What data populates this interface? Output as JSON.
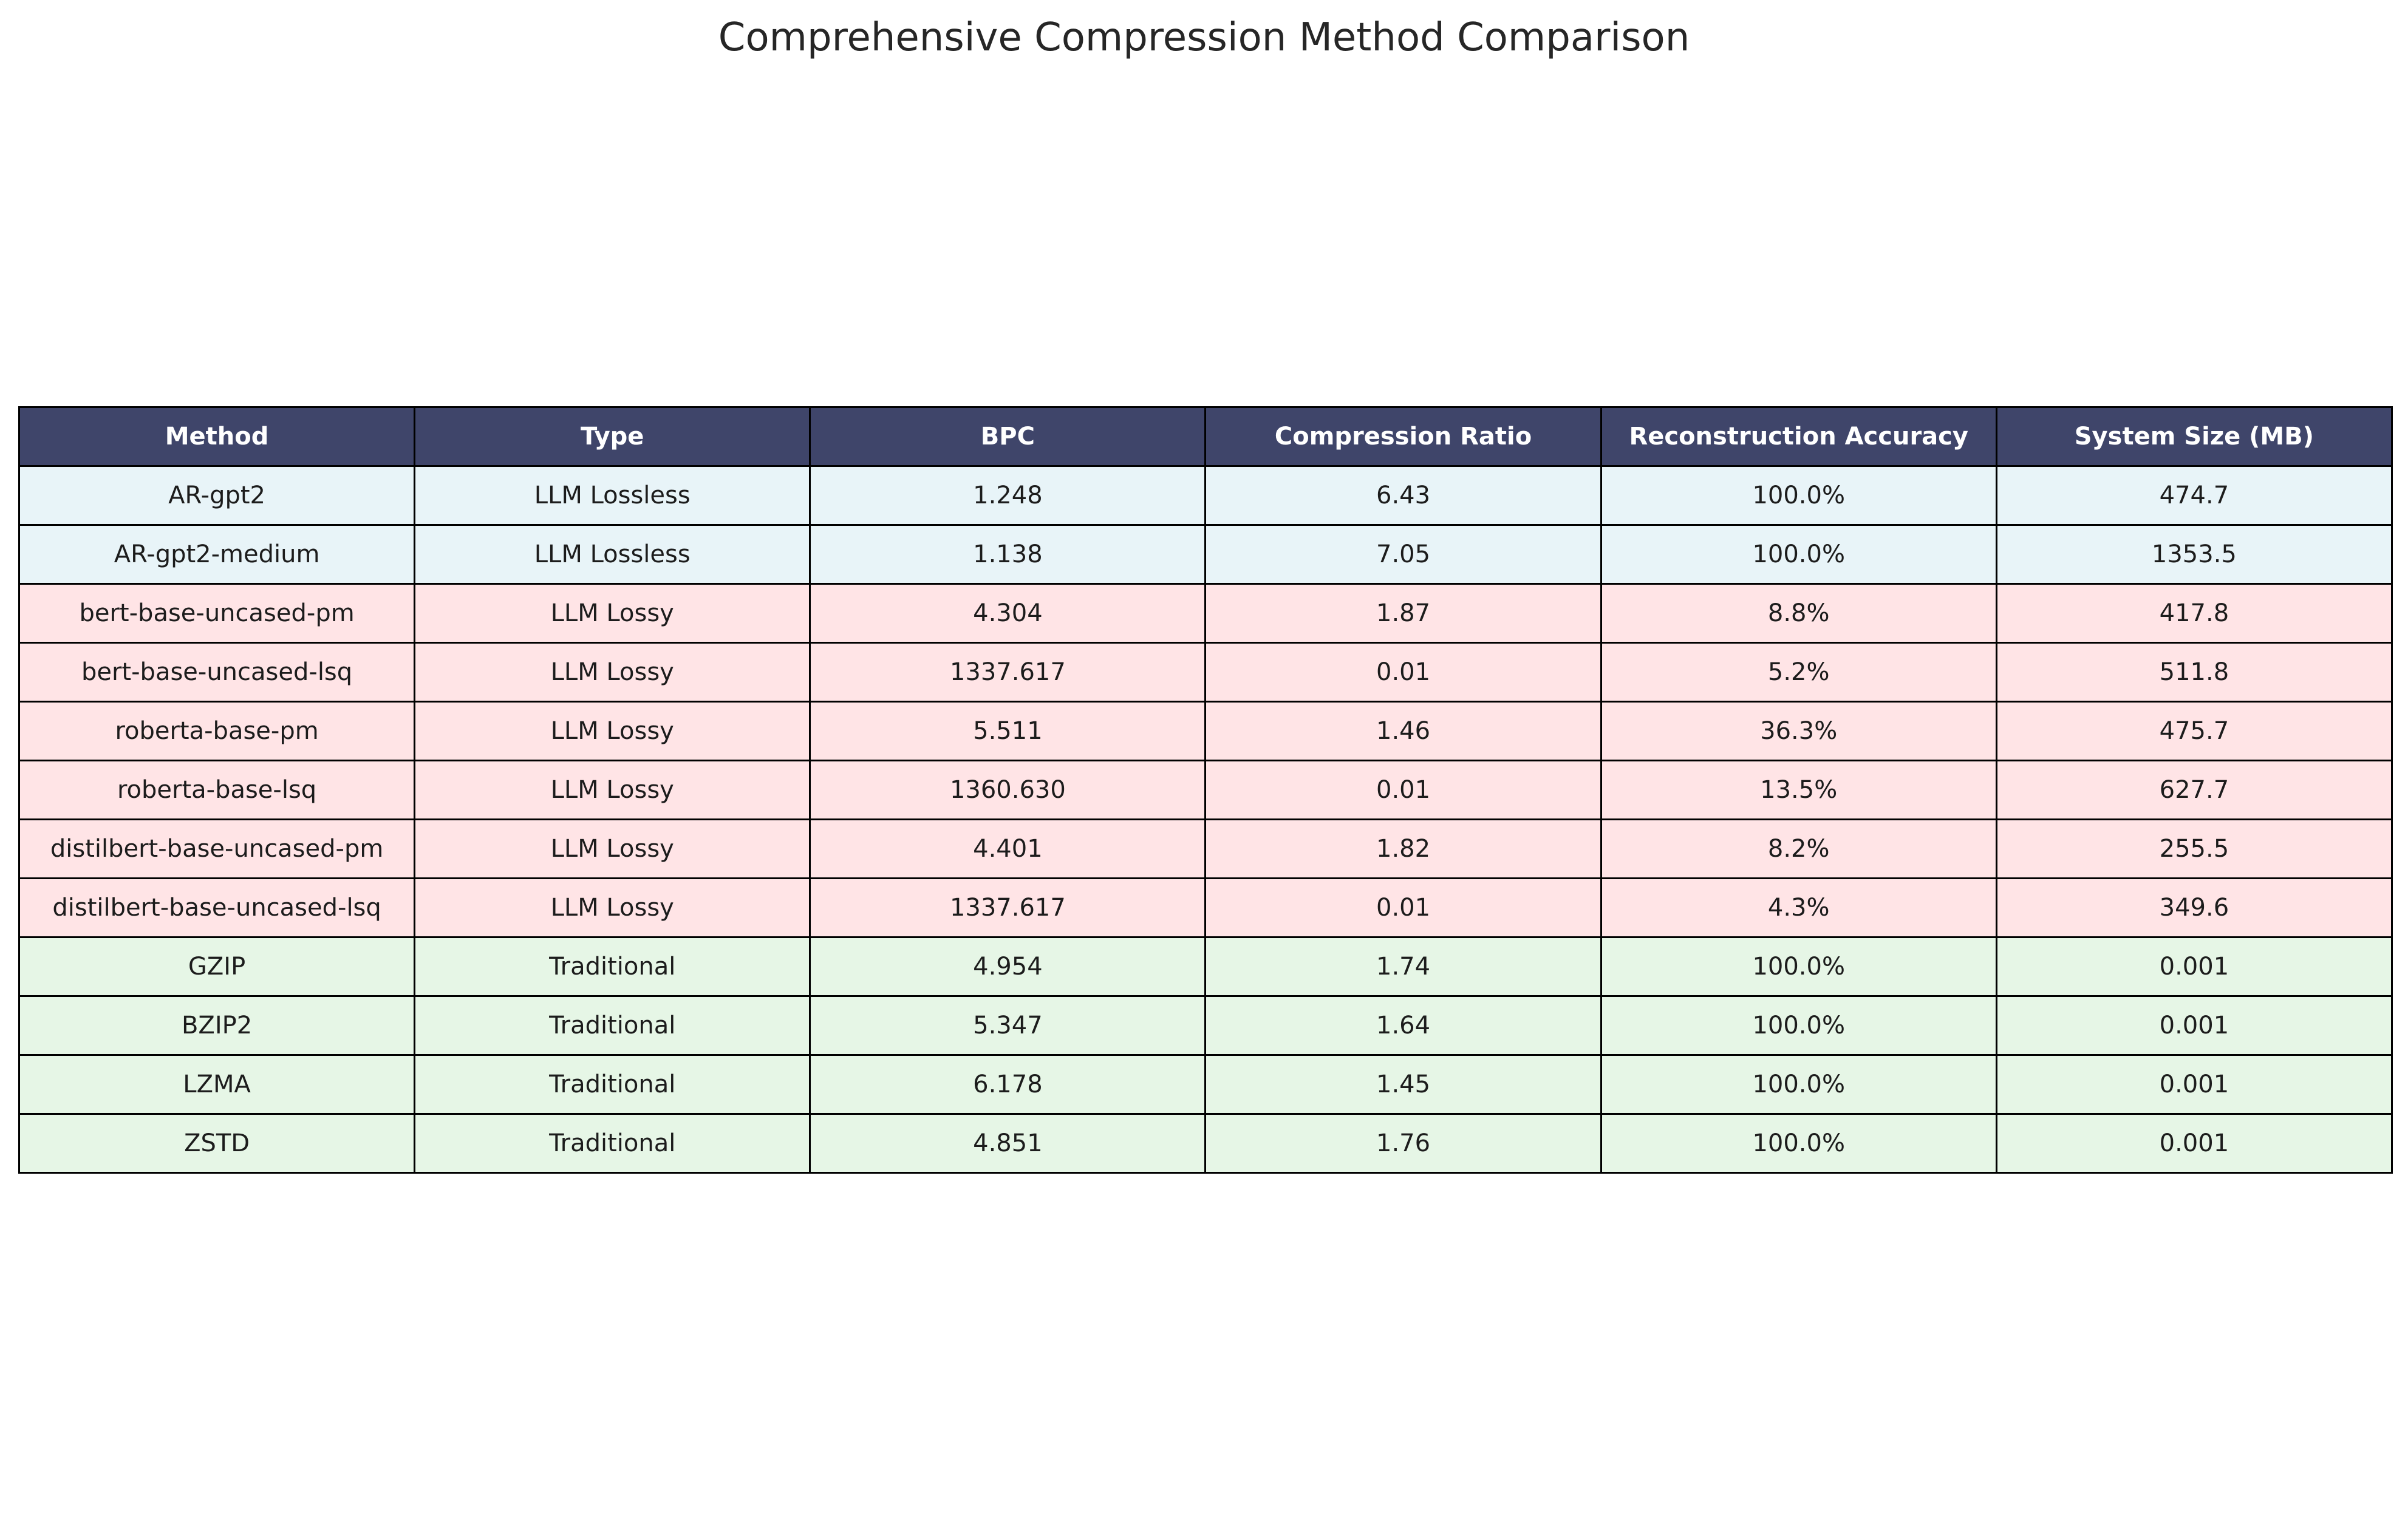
{
  "chart_data": {
    "type": "table",
    "title": "Comprehensive Compression Method Comparison",
    "columns": [
      "Method",
      "Type",
      "BPC",
      "Compression Ratio",
      "Reconstruction Accuracy",
      "System Size (MB)"
    ],
    "rows": [
      {
        "group": "lossless",
        "cells": [
          "AR-gpt2",
          "LLM Lossless",
          "1.248",
          "6.43",
          "100.0%",
          "474.7"
        ]
      },
      {
        "group": "lossless",
        "cells": [
          "AR-gpt2-medium",
          "LLM Lossless",
          "1.138",
          "7.05",
          "100.0%",
          "1353.5"
        ]
      },
      {
        "group": "lossy",
        "cells": [
          "bert-base-uncased-pm",
          "LLM Lossy",
          "4.304",
          "1.87",
          "8.8%",
          "417.8"
        ]
      },
      {
        "group": "lossy",
        "cells": [
          "bert-base-uncased-lsq",
          "LLM Lossy",
          "1337.617",
          "0.01",
          "5.2%",
          "511.8"
        ]
      },
      {
        "group": "lossy",
        "cells": [
          "roberta-base-pm",
          "LLM Lossy",
          "5.511",
          "1.46",
          "36.3%",
          "475.7"
        ]
      },
      {
        "group": "lossy",
        "cells": [
          "roberta-base-lsq",
          "LLM Lossy",
          "1360.630",
          "0.01",
          "13.5%",
          "627.7"
        ]
      },
      {
        "group": "lossy",
        "cells": [
          "distilbert-base-uncased-pm",
          "LLM Lossy",
          "4.401",
          "1.82",
          "8.2%",
          "255.5"
        ]
      },
      {
        "group": "lossy",
        "cells": [
          "distilbert-base-uncased-lsq",
          "LLM Lossy",
          "1337.617",
          "0.01",
          "4.3%",
          "349.6"
        ]
      },
      {
        "group": "traditional",
        "cells": [
          "GZIP",
          "Traditional",
          "4.954",
          "1.74",
          "100.0%",
          "0.001"
        ]
      },
      {
        "group": "traditional",
        "cells": [
          "BZIP2",
          "Traditional",
          "5.347",
          "1.64",
          "100.0%",
          "0.001"
        ]
      },
      {
        "group": "traditional",
        "cells": [
          "LZMA",
          "Traditional",
          "6.178",
          "1.45",
          "100.0%",
          "0.001"
        ]
      },
      {
        "group": "traditional",
        "cells": [
          "ZSTD",
          "Traditional",
          "4.851",
          "1.76",
          "100.0%",
          "0.001"
        ]
      }
    ],
    "colors": {
      "header": "#3f456a",
      "lossless": "#e8f4f8",
      "lossy": "#ffe4e6",
      "traditional": "#e6f6e6"
    }
  }
}
